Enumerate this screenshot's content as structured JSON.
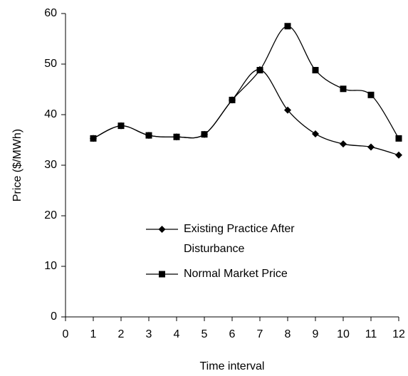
{
  "chart_data": {
    "type": "line",
    "x_label": "Time interval",
    "y_label": "Price ($/MWh)",
    "x": [
      1,
      2,
      3,
      4,
      5,
      6,
      7,
      8,
      9,
      10,
      11,
      12
    ],
    "series": [
      {
        "name": "Existing Practice After Disturbance",
        "color": "#000000",
        "marker": "diamond",
        "values": [
          35.3,
          37.8,
          35.9,
          35.6,
          36.1,
          42.9,
          48.9,
          40.9,
          36.2,
          34.2,
          33.6,
          32.0
        ]
      },
      {
        "name": "Normal Market Price",
        "color": "#000000",
        "marker": "square",
        "values": [
          35.3,
          37.8,
          35.9,
          35.6,
          36.1,
          42.9,
          48.8,
          57.5,
          48.8,
          45.1,
          43.9,
          35.3
        ]
      }
    ],
    "xlim": [
      0,
      12
    ],
    "xticks": [
      0,
      1,
      2,
      3,
      4,
      5,
      6,
      7,
      8,
      9,
      10,
      11,
      12
    ],
    "ylim": [
      0,
      60
    ],
    "yticks": [
      0,
      10,
      20,
      30,
      40,
      50,
      60
    ],
    "grid": false,
    "smooth": true
  }
}
